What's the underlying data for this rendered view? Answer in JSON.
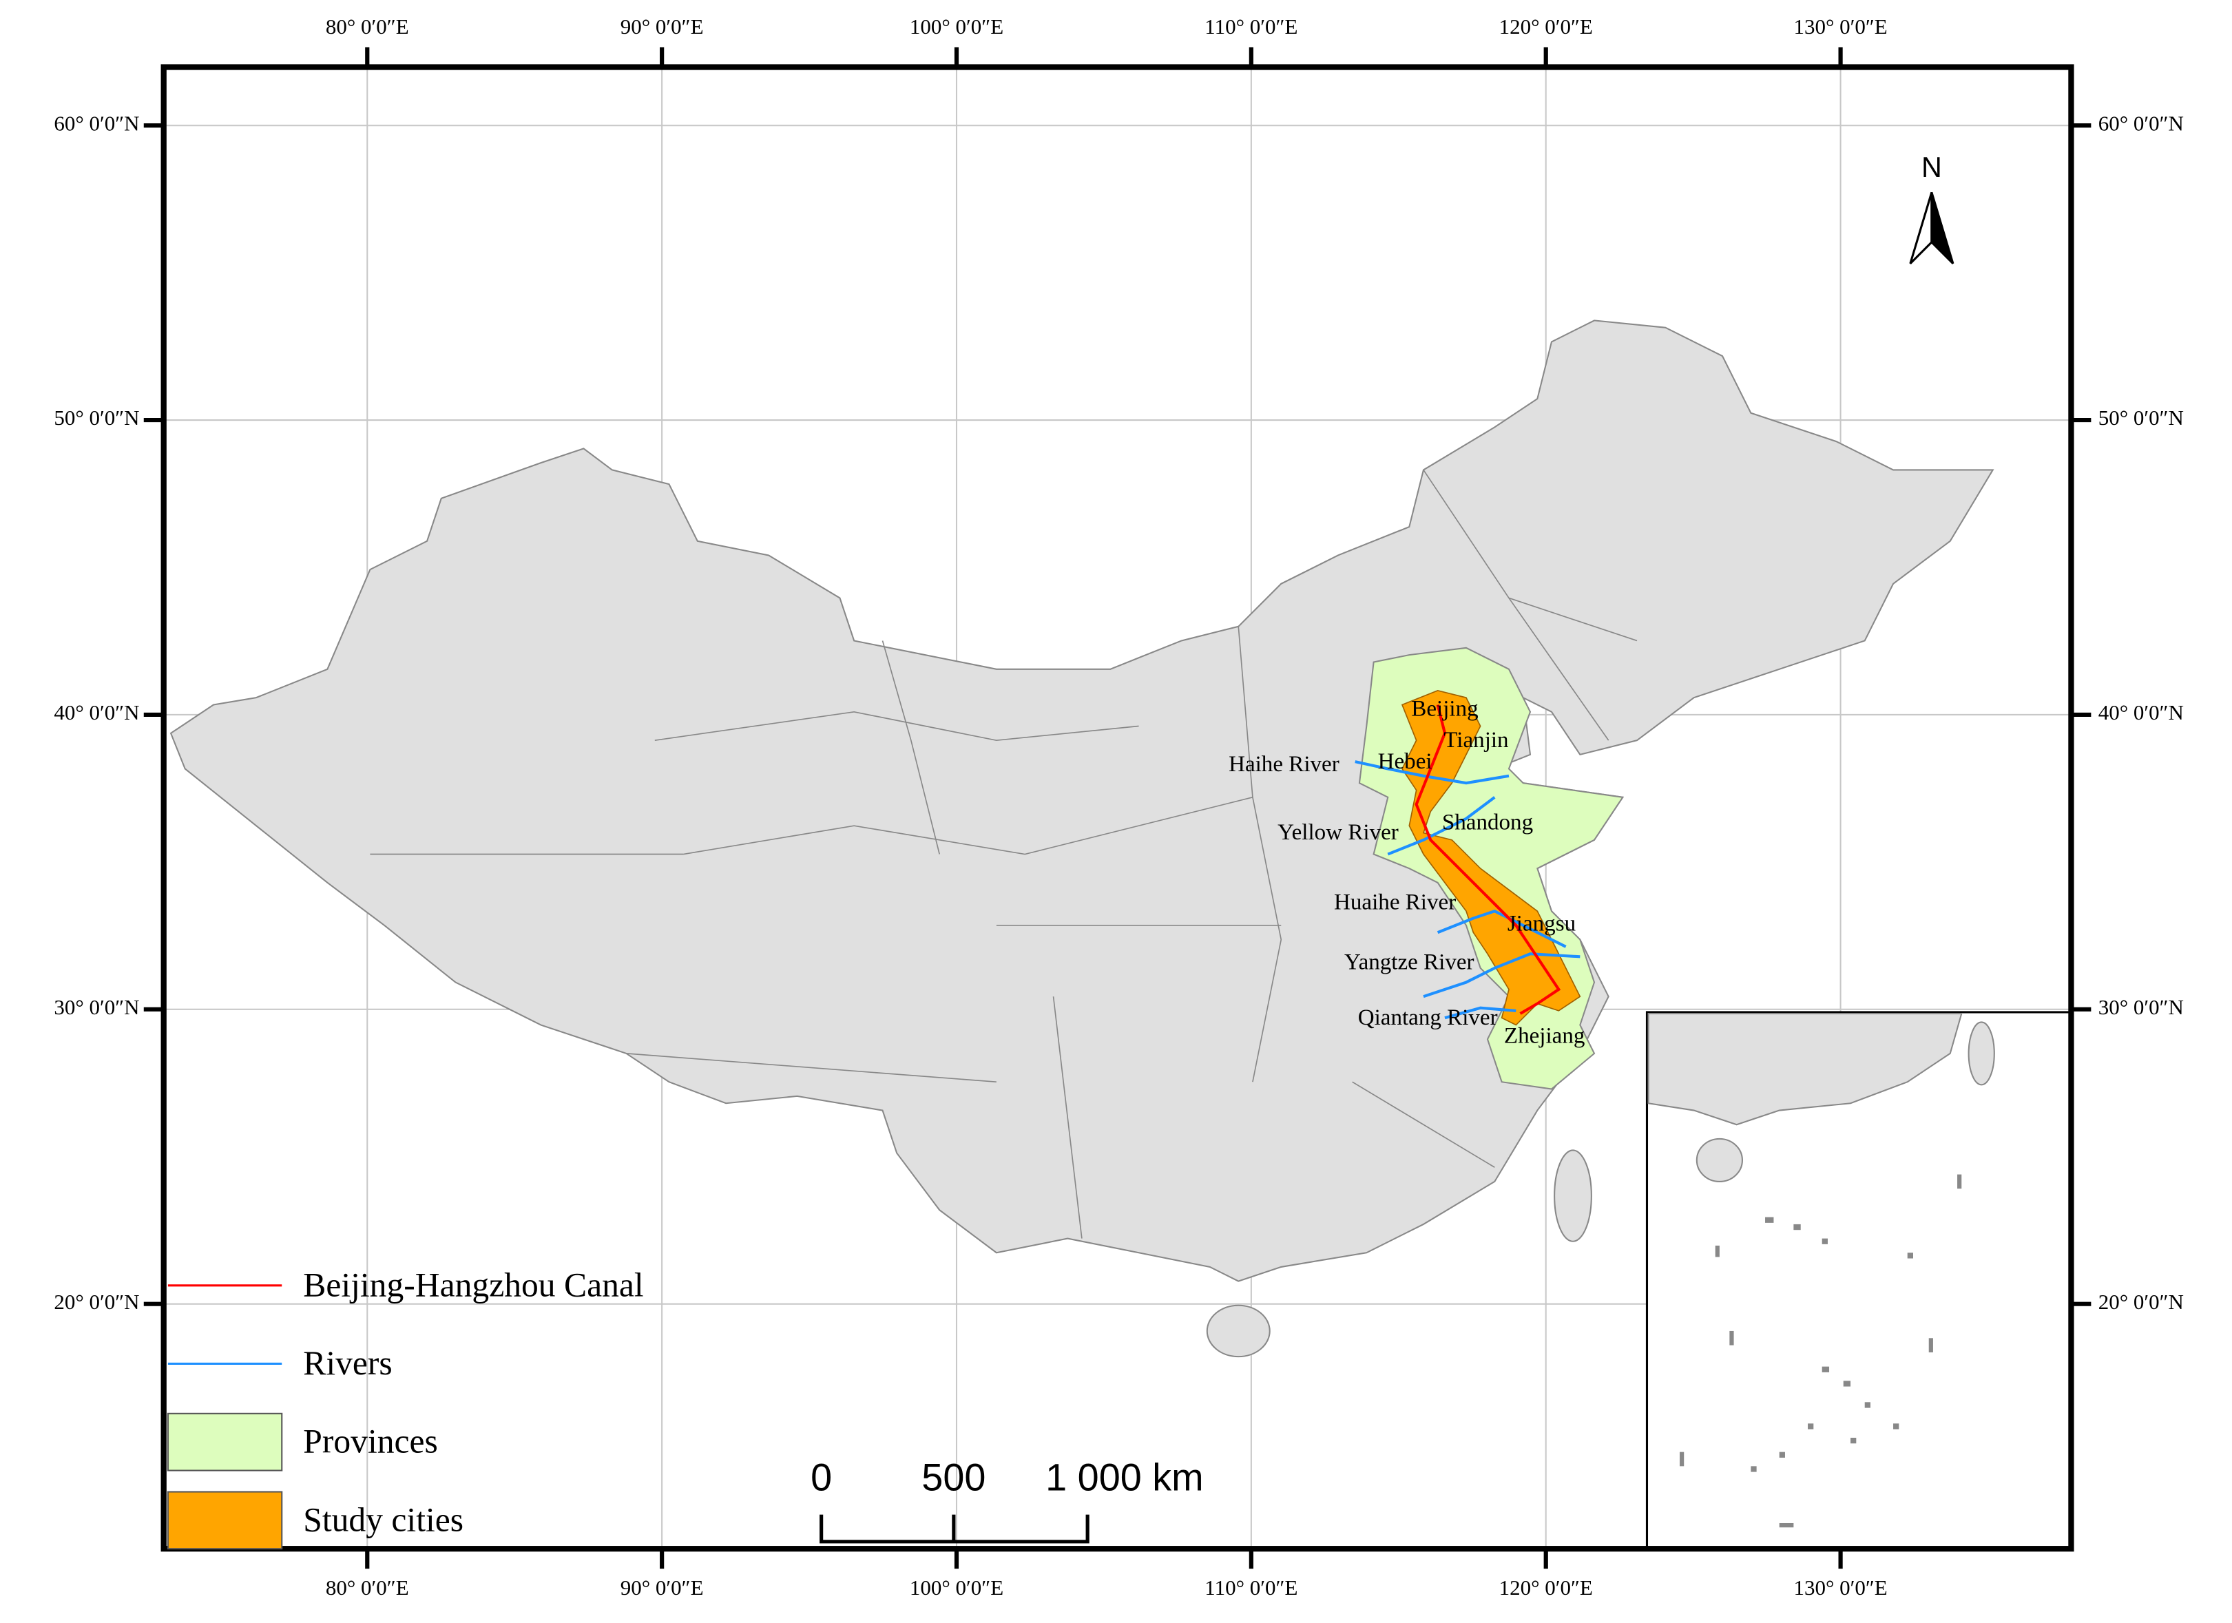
{
  "graticule": {
    "longitude_labels": [
      "80° 0′0″E",
      "90° 0′0″E",
      "100° 0′0″E",
      "110° 0′0″E",
      "120° 0′0″E",
      "130° 0′0″E"
    ],
    "latitude_labels": [
      "60° 0′0″N",
      "50° 0′0″N",
      "40° 0′0″N",
      "30° 0′0″N",
      "20° 0′0″N"
    ]
  },
  "north_arrow": "N",
  "places": [
    "Beijing",
    "Tianjin",
    "Hebei",
    "Haihe River",
    "Yellow River",
    "Shandong",
    "Huaihe River",
    "Jiangsu",
    "Yangtze River",
    "Qiantang River",
    "Zhejiang"
  ],
  "legend": [
    "Beijing-Hangzhou Canal",
    "Rivers",
    "Provinces",
    "Study cities"
  ],
  "scale_bar": [
    "0",
    "500",
    "1 000 km"
  ]
}
